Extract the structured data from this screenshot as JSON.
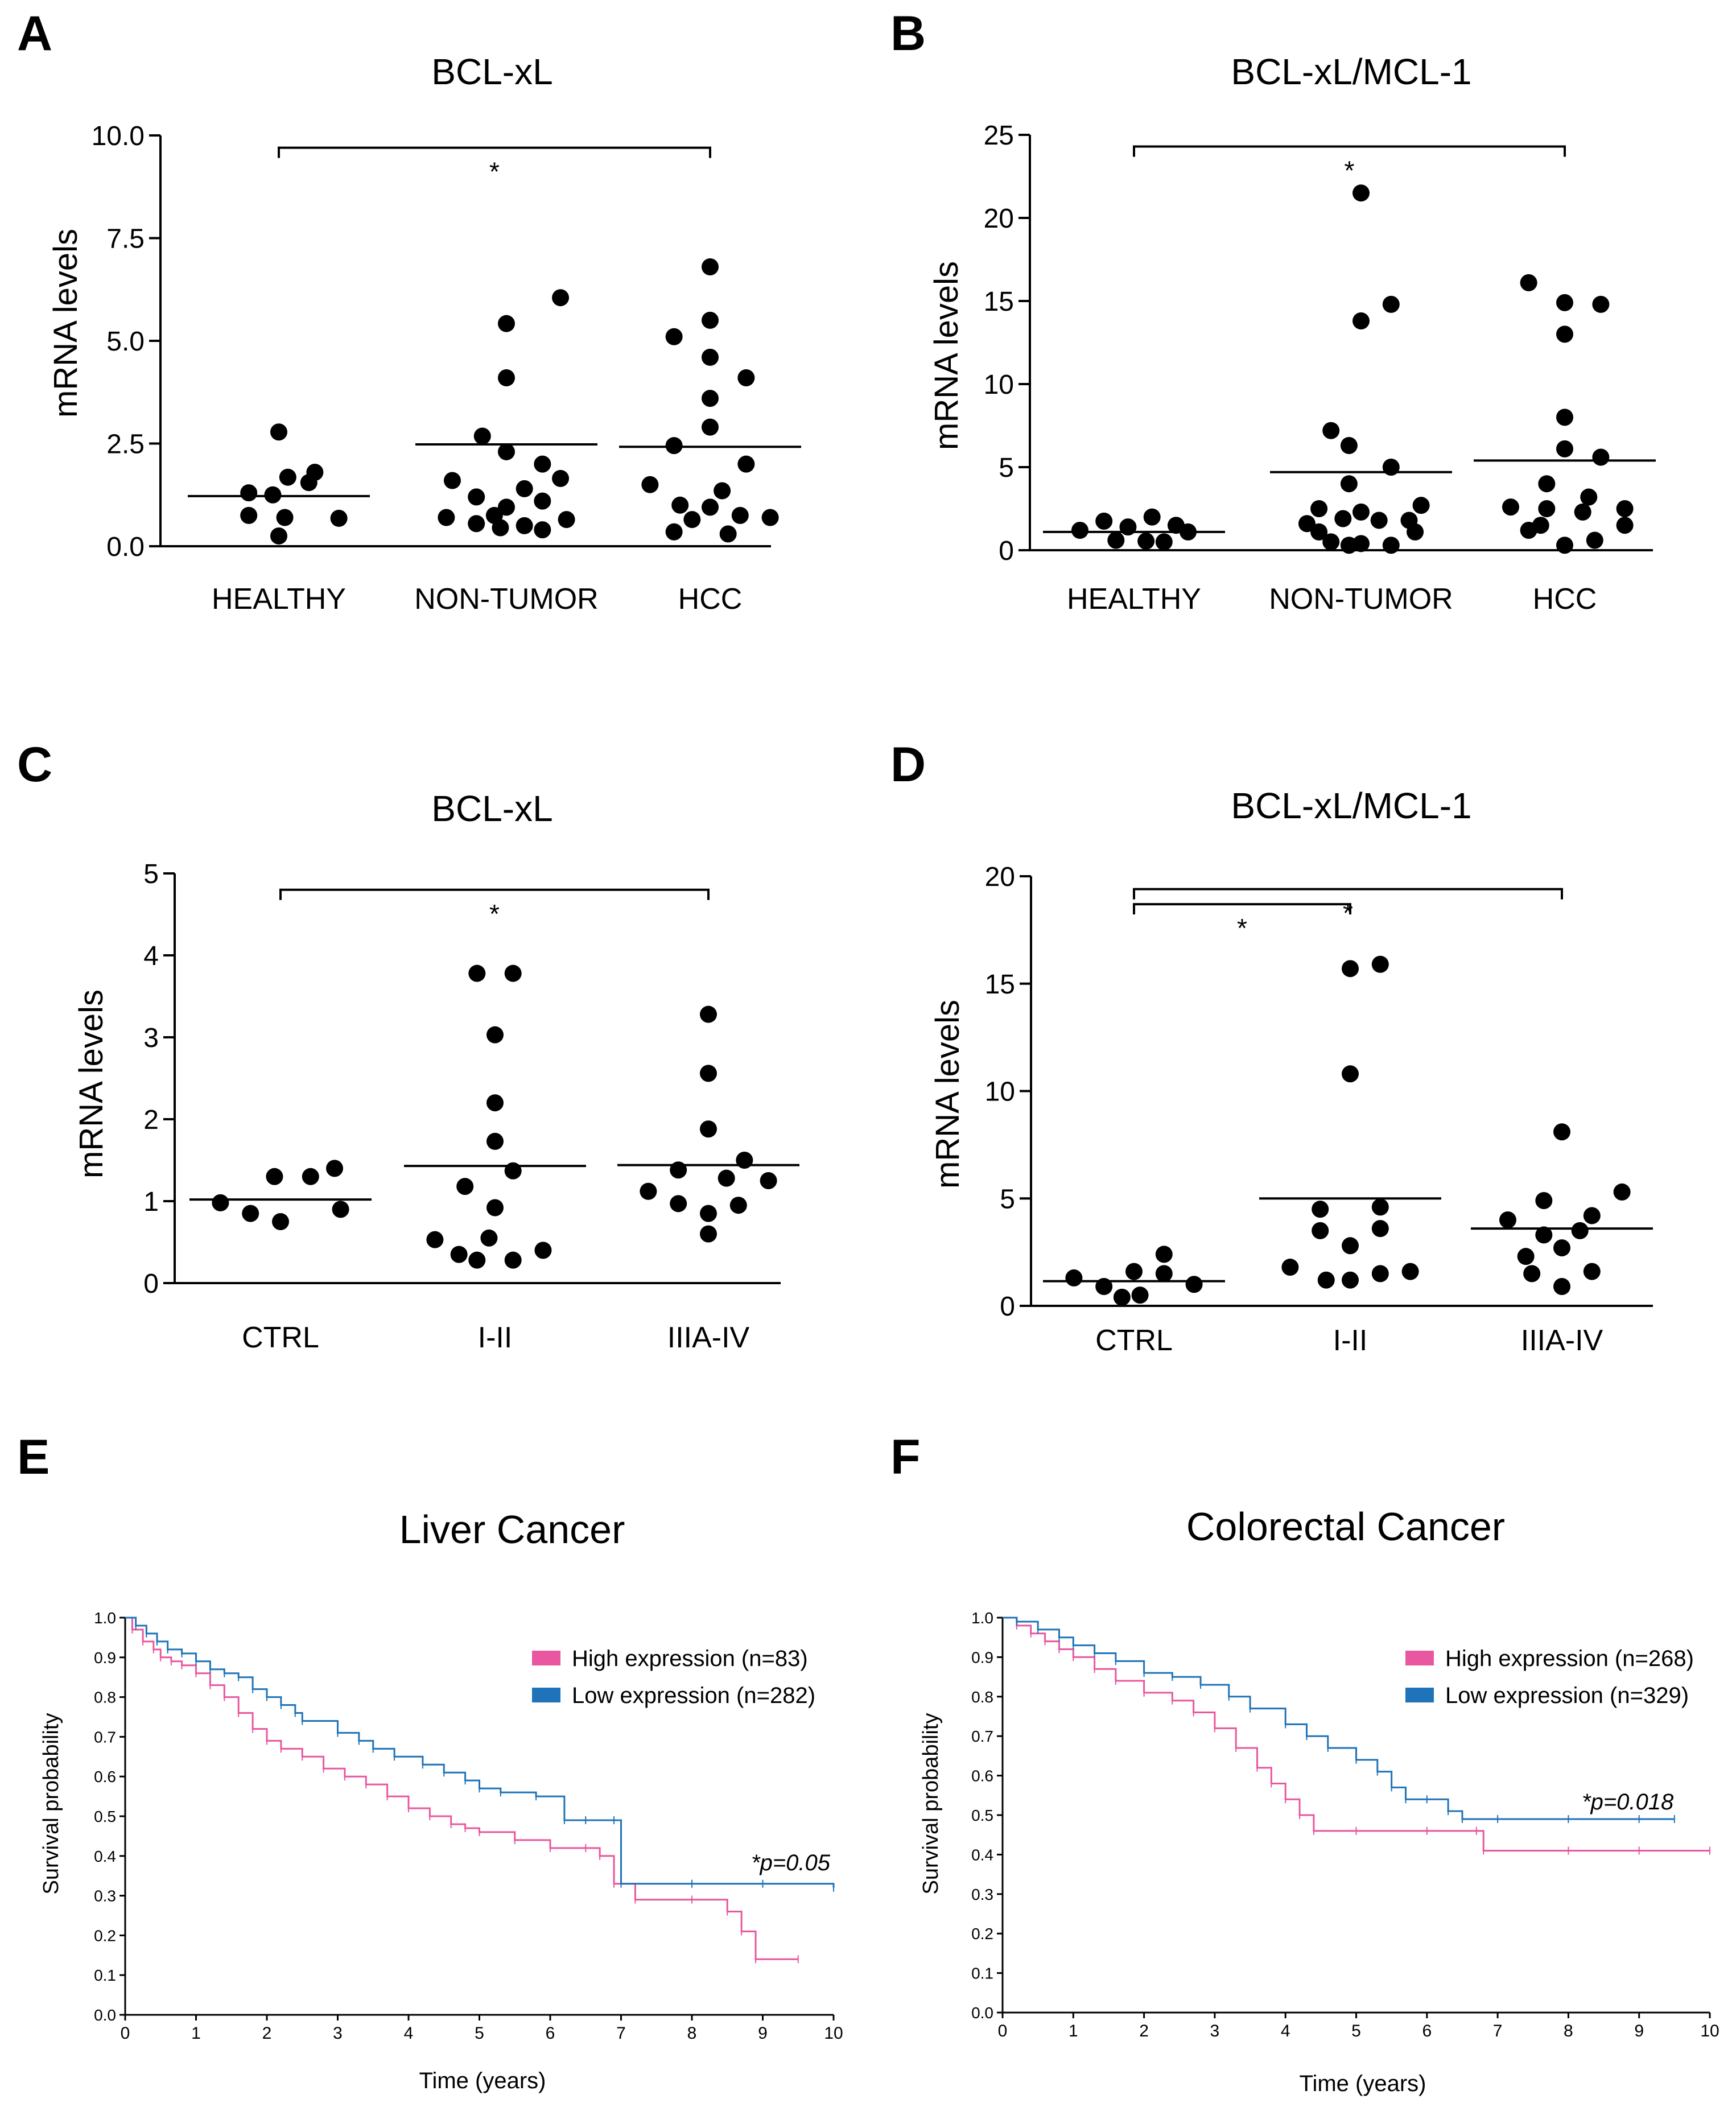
{
  "colors": {
    "axis": "#000000",
    "high": "#e8579f",
    "low": "#1f73b8",
    "dot": "#000000"
  },
  "chart_data": [
    {
      "panel": "A",
      "type": "scatter",
      "title": "BCL-xL",
      "ylabel": "mRNA levels",
      "xlabel": "",
      "categories": [
        "HEALTHY",
        "NON-TUMOR",
        "HCC"
      ],
      "ylim": [
        0,
        10
      ],
      "yticks": [
        0.0,
        2.5,
        5.0,
        7.5,
        10.0
      ],
      "ytick_labels": [
        "0.0",
        "2.5",
        "5.0",
        "7.5",
        "10.0"
      ],
      "groups": [
        {
          "name": "HEALTHY",
          "mean": 1.22,
          "values": [
            2.78,
            1.8,
            1.68,
            1.55,
            1.3,
            1.25,
            0.75,
            0.7,
            0.68,
            0.25
          ],
          "offsets": [
            0.0,
            0.6,
            0.15,
            0.5,
            -0.5,
            -0.1,
            -0.5,
            0.1,
            1.0,
            0.0
          ]
        },
        {
          "name": "NON-TUMOR",
          "mean": 2.48,
          "values": [
            6.05,
            5.42,
            4.1,
            2.68,
            2.3,
            2.0,
            1.65,
            1.6,
            1.4,
            1.2,
            1.1,
            0.95,
            0.75,
            0.7,
            0.65,
            0.55,
            0.5,
            0.45,
            0.4
          ],
          "offsets": [
            0.9,
            0.0,
            0.0,
            -0.4,
            0.0,
            0.6,
            0.9,
            -0.9,
            0.3,
            -0.5,
            0.6,
            0.0,
            -0.2,
            -1.0,
            1.0,
            -0.5,
            0.3,
            -0.1,
            0.6
          ]
        },
        {
          "name": "HCC",
          "mean": 2.42,
          "values": [
            6.8,
            5.5,
            5.1,
            4.6,
            4.1,
            3.6,
            2.9,
            2.45,
            2.0,
            1.5,
            1.35,
            1.0,
            0.95,
            0.75,
            0.7,
            0.65,
            0.35,
            0.3
          ],
          "offsets": [
            0.0,
            0.0,
            -0.6,
            0.0,
            0.6,
            0.0,
            0.0,
            -0.6,
            0.6,
            -1.0,
            0.2,
            -0.5,
            0.0,
            0.5,
            1.0,
            -0.3,
            -0.6,
            0.3
          ]
        }
      ],
      "significance": [
        {
          "from": "HEALTHY",
          "to": "HCC",
          "y": 9.7,
          "label": "*"
        }
      ]
    },
    {
      "panel": "B",
      "type": "scatter",
      "title": "BCL-xL/MCL-1",
      "ylabel": "mRNA levels",
      "xlabel": "",
      "categories": [
        "HEALTHY",
        "NON-TUMOR",
        "HCC"
      ],
      "ylim": [
        0,
        25
      ],
      "yticks": [
        0,
        5,
        10,
        15,
        20,
        25
      ],
      "ytick_labels": [
        "0",
        "5",
        "10",
        "15",
        "20",
        "25"
      ],
      "groups": [
        {
          "name": "HEALTHY",
          "mean": 1.1,
          "values": [
            2.0,
            1.75,
            1.5,
            1.4,
            1.2,
            1.1,
            0.6,
            0.55,
            0.5
          ],
          "offsets": [
            0.3,
            -0.5,
            0.7,
            -0.1,
            -0.9,
            0.9,
            -0.3,
            0.2,
            0.5
          ]
        },
        {
          "name": "NON-TUMOR",
          "mean": 4.7,
          "values": [
            21.5,
            14.8,
            13.8,
            7.2,
            6.3,
            5.0,
            4.0,
            2.7,
            2.5,
            2.3,
            1.9,
            1.8,
            1.8,
            1.6,
            1.1,
            1.1,
            0.5,
            0.4,
            0.3,
            0.3
          ],
          "offsets": [
            0.0,
            0.5,
            0.0,
            -0.5,
            -0.2,
            0.5,
            -0.2,
            1.0,
            -0.7,
            0.0,
            -0.3,
            0.3,
            0.8,
            -0.9,
            -0.7,
            0.9,
            -0.5,
            0.0,
            0.5,
            -0.2
          ]
        },
        {
          "name": "HCC",
          "mean": 5.4,
          "values": [
            16.1,
            14.9,
            14.8,
            13.0,
            8.0,
            6.1,
            5.6,
            4.0,
            3.2,
            2.6,
            2.5,
            2.5,
            2.3,
            1.5,
            1.5,
            1.2,
            0.6,
            0.3
          ],
          "offsets": [
            -0.6,
            0.0,
            0.6,
            0.0,
            0.0,
            0.0,
            0.6,
            -0.3,
            0.4,
            -0.9,
            1.0,
            -0.3,
            0.3,
            -0.4,
            1.0,
            -0.6,
            0.5,
            0.0
          ]
        }
      ],
      "significance": [
        {
          "from": "HEALTHY",
          "to": "HCC",
          "y": 24.3,
          "label": "*"
        }
      ]
    },
    {
      "panel": "C",
      "type": "scatter",
      "title": "BCL-xL",
      "ylabel": "mRNA levels",
      "xlabel": "",
      "categories": [
        "CTRL",
        "I-II",
        "IIIA-IV"
      ],
      "ylim": [
        0,
        5
      ],
      "yticks": [
        0,
        1,
        2,
        3,
        4,
        5
      ],
      "ytick_labels": [
        "0",
        "1",
        "2",
        "3",
        "4",
        "5"
      ],
      "groups": [
        {
          "name": "CTRL",
          "mean": 1.02,
          "values": [
            1.4,
            1.3,
            1.3,
            0.98,
            0.9,
            0.85,
            0.75
          ],
          "offsets": [
            0.9,
            0.5,
            -0.1,
            -1.0,
            1.0,
            -0.5,
            0.0
          ]
        },
        {
          "name": "I-II",
          "mean": 1.43,
          "values": [
            3.78,
            3.78,
            3.03,
            2.2,
            1.73,
            1.37,
            1.18,
            0.92,
            0.55,
            0.53,
            0.4,
            0.35,
            0.28,
            0.28
          ],
          "offsets": [
            -0.3,
            0.3,
            0.0,
            0.0,
            0.0,
            0.3,
            -0.5,
            0.0,
            -0.1,
            -1.0,
            0.8,
            -0.6,
            -0.3,
            0.3
          ]
        },
        {
          "name": "IIIA-IV",
          "mean": 1.44,
          "values": [
            3.28,
            2.56,
            1.88,
            1.5,
            1.38,
            1.28,
            1.25,
            1.12,
            0.97,
            0.95,
            0.85,
            0.6
          ],
          "offsets": [
            0.0,
            0.0,
            0.0,
            0.6,
            -0.5,
            0.3,
            1.0,
            -1.0,
            -0.5,
            0.5,
            0.0,
            0.0
          ]
        }
      ],
      "significance": [
        {
          "from": "CTRL",
          "to": "IIIA-IV",
          "y": 4.8,
          "label": "*"
        }
      ]
    },
    {
      "panel": "D",
      "type": "scatter",
      "title": "BCL-xL/MCL-1",
      "ylabel": "mRNA levels",
      "xlabel": "",
      "categories": [
        "CTRL",
        "I-II",
        "IIIA-IV"
      ],
      "ylim": [
        0,
        20
      ],
      "yticks": [
        0,
        5,
        10,
        15,
        20
      ],
      "ytick_labels": [
        "0",
        "5",
        "10",
        "15",
        "20"
      ],
      "groups": [
        {
          "name": "CTRL",
          "mean": 1.15,
          "values": [
            2.4,
            1.6,
            1.5,
            1.3,
            1.0,
            0.9,
            0.5,
            0.4
          ],
          "offsets": [
            0.5,
            0.0,
            0.5,
            -1.0,
            1.0,
            -0.5,
            0.1,
            -0.2
          ]
        },
        {
          "name": "I-II",
          "mean": 5.0,
          "values": [
            15.9,
            15.7,
            10.8,
            4.6,
            4.5,
            3.6,
            3.5,
            2.8,
            1.8,
            1.6,
            1.5,
            1.2,
            1.2
          ],
          "offsets": [
            0.5,
            0.0,
            0.0,
            0.5,
            -0.5,
            0.5,
            -0.5,
            0.0,
            -1.0,
            1.0,
            0.5,
            0.0,
            -0.4
          ]
        },
        {
          "name": "IIIA-IV",
          "mean": 3.6,
          "values": [
            8.1,
            5.3,
            4.9,
            4.2,
            4.0,
            3.5,
            3.3,
            2.7,
            2.3,
            1.6,
            1.5,
            0.9
          ],
          "offsets": [
            0.0,
            1.0,
            -0.3,
            0.5,
            -0.9,
            0.3,
            -0.3,
            0.0,
            -0.6,
            0.5,
            -0.5,
            0.0
          ]
        }
      ],
      "significance": [
        {
          "from": "CTRL",
          "to": "I-II",
          "y": 18.7,
          "label": "*"
        },
        {
          "from": "CTRL",
          "to": "IIIA-IV",
          "y": 19.4,
          "label": "*"
        }
      ]
    },
    {
      "panel": "E",
      "type": "line",
      "title": "Liver Cancer",
      "xlabel": "Time (years)",
      "ylabel": "Survival probability",
      "xlim": [
        0,
        10
      ],
      "ylim": [
        0,
        1
      ],
      "xticks": [
        0,
        1,
        2,
        3,
        4,
        5,
        6,
        7,
        8,
        9,
        10
      ],
      "xtick_labels": [
        "0",
        "1",
        "2",
        "3",
        "4",
        "5",
        "6",
        "7",
        "8",
        "9",
        "10"
      ],
      "yticks": [
        0,
        0.1,
        0.2,
        0.3,
        0.4,
        0.5,
        0.6,
        0.7,
        0.8,
        0.9,
        1.0
      ],
      "ytick_labels": [
        "0.0",
        "0.1",
        "0.2",
        "0.3",
        "0.4",
        "0.5",
        "0.6",
        "0.7",
        "0.8",
        "0.9",
        "1.0"
      ],
      "legend": [
        "High expression (n=83)",
        "Low expression (n=282)"
      ],
      "annotation": "*p=0.05",
      "series": [
        {
          "name": "High expression (n=83)",
          "color": "high",
          "x": [
            0,
            0.1,
            0.25,
            0.4,
            0.5,
            0.65,
            0.8,
            1.0,
            1.2,
            1.4,
            1.6,
            1.8,
            2.0,
            2.2,
            2.5,
            2.8,
            3.1,
            3.4,
            3.7,
            4.0,
            4.3,
            4.6,
            4.8,
            5.0,
            5.5,
            6.0,
            6.5,
            6.7,
            6.9,
            7.2,
            8.0,
            8.5,
            8.7,
            8.9,
            9.5
          ],
          "y": [
            1.0,
            0.97,
            0.94,
            0.92,
            0.9,
            0.89,
            0.88,
            0.86,
            0.83,
            0.8,
            0.76,
            0.72,
            0.69,
            0.67,
            0.65,
            0.62,
            0.6,
            0.58,
            0.55,
            0.52,
            0.5,
            0.48,
            0.47,
            0.46,
            0.44,
            0.42,
            0.42,
            0.4,
            0.33,
            0.29,
            0.29,
            0.26,
            0.21,
            0.14,
            0.14
          ]
        },
        {
          "name": "Low expression (n=282)",
          "color": "low",
          "x": [
            0,
            0.15,
            0.3,
            0.45,
            0.6,
            0.8,
            1.0,
            1.2,
            1.4,
            1.6,
            1.8,
            2.0,
            2.2,
            2.4,
            2.5,
            3.0,
            3.3,
            3.5,
            3.8,
            4.2,
            4.5,
            4.8,
            5.0,
            5.3,
            5.8,
            6.2,
            6.5,
            6.9,
            7.0,
            8.0,
            9.0,
            10.0
          ],
          "y": [
            1.0,
            0.98,
            0.96,
            0.94,
            0.92,
            0.91,
            0.89,
            0.87,
            0.86,
            0.85,
            0.82,
            0.8,
            0.78,
            0.76,
            0.74,
            0.71,
            0.69,
            0.67,
            0.65,
            0.63,
            0.61,
            0.59,
            0.57,
            0.56,
            0.55,
            0.49,
            0.49,
            0.49,
            0.33,
            0.33,
            0.33,
            0.32
          ]
        }
      ]
    },
    {
      "panel": "F",
      "type": "line",
      "title": "Colorectal Cancer",
      "xlabel": "Time (years)",
      "ylabel": "Survival probability",
      "xlim": [
        0,
        10
      ],
      "ylim": [
        0,
        1
      ],
      "xticks": [
        0,
        1,
        2,
        3,
        4,
        5,
        6,
        7,
        8,
        9,
        10
      ],
      "xtick_labels": [
        "0",
        "1",
        "2",
        "3",
        "4",
        "5",
        "6",
        "7",
        "8",
        "9",
        "10"
      ],
      "yticks": [
        0,
        0.1,
        0.2,
        0.3,
        0.4,
        0.5,
        0.6,
        0.7,
        0.8,
        0.9,
        1.0
      ],
      "ytick_labels": [
        "0.0",
        "0.1",
        "0.2",
        "0.3",
        "0.4",
        "0.5",
        "0.6",
        "0.7",
        "0.8",
        "0.9",
        "1.0"
      ],
      "legend": [
        "High expression (n=268)",
        "Low expression (n=329)"
      ],
      "annotation": "*p=0.018",
      "series": [
        {
          "name": "High expression (n=268)",
          "color": "high",
          "x": [
            0,
            0.2,
            0.4,
            0.6,
            0.8,
            1.0,
            1.3,
            1.6,
            2.0,
            2.4,
            2.7,
            3.0,
            3.3,
            3.6,
            3.8,
            4.0,
            4.2,
            4.4,
            5.0,
            6.0,
            6.7,
            6.8,
            8.0,
            9.0,
            10.0
          ],
          "y": [
            1.0,
            0.98,
            0.96,
            0.94,
            0.92,
            0.9,
            0.87,
            0.84,
            0.81,
            0.79,
            0.76,
            0.72,
            0.67,
            0.62,
            0.58,
            0.54,
            0.5,
            0.46,
            0.46,
            0.46,
            0.46,
            0.41,
            0.41,
            0.41,
            0.41
          ]
        },
        {
          "name": "Low expression (n=329)",
          "color": "low",
          "x": [
            0,
            0.2,
            0.5,
            0.8,
            1.0,
            1.3,
            1.6,
            2.0,
            2.4,
            2.8,
            3.2,
            3.5,
            4.0,
            4.3,
            4.6,
            5.0,
            5.3,
            5.5,
            5.7,
            6.0,
            6.3,
            6.5,
            7.0,
            8.0,
            9.0,
            9.5
          ],
          "y": [
            1.0,
            0.99,
            0.97,
            0.95,
            0.93,
            0.91,
            0.89,
            0.86,
            0.85,
            0.83,
            0.8,
            0.77,
            0.73,
            0.7,
            0.67,
            0.64,
            0.61,
            0.57,
            0.54,
            0.54,
            0.51,
            0.49,
            0.49,
            0.49,
            0.49,
            0.49
          ]
        }
      ]
    }
  ]
}
